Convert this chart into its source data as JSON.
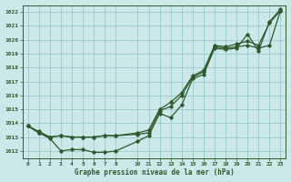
{
  "background_color": "#cce8e8",
  "grid_color": "#99cccc",
  "line_color": "#2d5a2d",
  "xlabel": "Graphe pression niveau de la mer (hPa)",
  "ylim": [
    1011.5,
    1022.5
  ],
  "xlim": [
    -0.5,
    23.5
  ],
  "yticks": [
    1012,
    1013,
    1014,
    1015,
    1016,
    1017,
    1018,
    1019,
    1020,
    1021,
    1022
  ],
  "xticks": [
    0,
    1,
    2,
    3,
    4,
    5,
    6,
    7,
    8,
    10,
    11,
    12,
    13,
    14,
    15,
    16,
    17,
    18,
    19,
    20,
    21,
    22,
    23
  ],
  "series1_x": [
    0,
    1,
    2,
    3,
    4,
    5,
    6,
    7,
    8,
    10,
    11,
    12,
    13,
    14,
    15,
    16,
    17,
    18,
    19,
    20,
    21,
    22,
    23
  ],
  "series1_y": [
    1013.8,
    1013.3,
    1013.0,
    1013.1,
    1013.0,
    1013.0,
    1013.0,
    1013.1,
    1013.1,
    1013.2,
    1013.3,
    1014.9,
    1015.2,
    1016.0,
    1017.3,
    1017.7,
    1019.5,
    1019.4,
    1019.5,
    1019.6,
    1019.4,
    1019.6,
    1022.1
  ],
  "series2_x": [
    0,
    1,
    2,
    3,
    4,
    5,
    6,
    7,
    8,
    10,
    11,
    12,
    13,
    14,
    15,
    16,
    17,
    18,
    19,
    20,
    21,
    22,
    23
  ],
  "series2_y": [
    1013.8,
    1013.4,
    1013.0,
    1013.1,
    1013.0,
    1013.0,
    1013.0,
    1013.1,
    1013.1,
    1013.3,
    1013.5,
    1015.0,
    1015.5,
    1016.2,
    1017.4,
    1017.8,
    1019.6,
    1019.5,
    1019.7,
    1019.9,
    1019.6,
    1021.2,
    1022.1
  ],
  "series3_x": [
    0,
    1,
    2,
    3,
    4,
    5,
    6,
    7,
    8,
    10,
    11,
    12,
    13,
    14,
    15,
    16,
    17,
    18,
    19,
    20,
    21,
    22,
    23
  ],
  "series3_y": [
    1013.8,
    1013.3,
    1012.9,
    1012.0,
    1012.1,
    1012.1,
    1011.9,
    1011.9,
    1012.0,
    1012.7,
    1013.1,
    1014.7,
    1014.4,
    1015.3,
    1017.2,
    1017.5,
    1019.4,
    1019.3,
    1019.4,
    1020.4,
    1019.2,
    1021.3,
    1022.2
  ]
}
